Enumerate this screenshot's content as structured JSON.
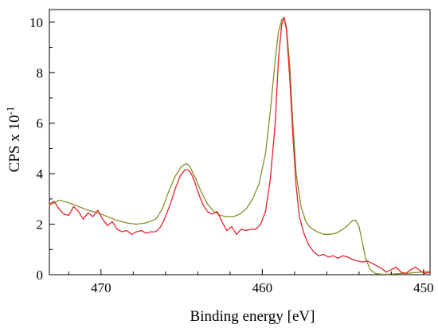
{
  "chart_data": {
    "type": "line",
    "title": "",
    "xlabel": "Binding energy [eV]",
    "ylabel": "CPS x 10",
    "ylabel_superscript": "-1",
    "x_reversed": true,
    "xlim": [
      473.2,
      449.6
    ],
    "ylim": [
      0,
      10.5
    ],
    "x_ticks": [
      470,
      460,
      450
    ],
    "x_tick_labels": [
      "470",
      "460",
      "450"
    ],
    "y_ticks": [
      0,
      2,
      4,
      6,
      8,
      10
    ],
    "y_tick_labels": [
      "0",
      "2",
      "4",
      "6",
      "8",
      "10"
    ],
    "grid": false,
    "legend": "none",
    "series": [
      {
        "color": "#8B8B2A",
        "x": [
          473.2,
          472.6,
          472,
          471.4,
          470.8,
          470.2,
          469.6,
          469,
          468.4,
          467.8,
          467.2,
          466.6,
          466.2,
          465.8,
          465.4,
          465,
          464.7,
          464.5,
          464.2,
          463.8,
          463.4,
          463,
          462.6,
          462.2,
          461.8,
          461.4,
          461,
          460.6,
          460.2,
          459.8,
          459.5,
          459.2,
          459,
          458.8,
          458.65,
          458.5,
          458.3,
          458.1,
          457.9,
          457.6,
          457.3,
          457,
          456.6,
          456.2,
          455.8,
          455.4,
          455,
          454.7,
          454.4,
          454.2,
          454,
          453.8,
          453.6,
          453.3,
          453,
          452.6,
          452.2,
          451.8,
          451.4,
          451,
          450.6,
          450.2,
          449.6
        ],
        "y": [
          2.75,
          2.95,
          2.85,
          2.7,
          2.55,
          2.45,
          2.3,
          2.15,
          2.05,
          2.0,
          2.05,
          2.2,
          2.6,
          3.3,
          3.9,
          4.3,
          4.4,
          4.3,
          3.9,
          3.3,
          2.8,
          2.5,
          2.35,
          2.3,
          2.3,
          2.4,
          2.6,
          3.0,
          3.6,
          4.8,
          6.5,
          8.5,
          9.6,
          10.1,
          10.15,
          9.8,
          8.3,
          6.0,
          4.0,
          2.7,
          2.1,
          1.85,
          1.7,
          1.6,
          1.6,
          1.65,
          1.8,
          1.95,
          2.15,
          2.15,
          1.9,
          1.3,
          0.65,
          0.2,
          0.05,
          0.02,
          0.02,
          0.03,
          0.05,
          0.05,
          0.08,
          0.1,
          0.12
        ]
      },
      {
        "color": "#E8202A",
        "x": [
          473.2,
          472.9,
          472.6,
          472.3,
          472,
          471.7,
          471.4,
          471.1,
          470.8,
          470.5,
          470.2,
          469.9,
          469.6,
          469.3,
          469,
          468.7,
          468.4,
          468.1,
          467.8,
          467.5,
          467.2,
          466.9,
          466.6,
          466.3,
          466,
          465.7,
          465.4,
          465.1,
          464.8,
          464.6,
          464.4,
          464.2,
          464,
          463.7,
          463.4,
          463.1,
          462.8,
          462.5,
          462.2,
          461.9,
          461.6,
          461.3,
          461,
          460.7,
          460.4,
          460.1,
          459.8,
          459.5,
          459.2,
          459,
          458.8,
          458.65,
          458.5,
          458.3,
          458.1,
          457.9,
          457.7,
          457.4,
          457.1,
          456.8,
          456.5,
          456.2,
          455.9,
          455.6,
          455.3,
          455,
          454.7,
          454.4,
          454.1,
          453.8,
          453.5,
          453.2,
          452.9,
          452.6,
          452.3,
          452,
          451.7,
          451.4,
          451.1,
          450.8,
          450.5,
          450.2,
          449.9,
          449.6
        ],
        "y": [
          2.8,
          2.9,
          2.6,
          2.4,
          2.35,
          2.7,
          2.5,
          2.2,
          2.45,
          2.3,
          2.55,
          2.2,
          1.95,
          2.1,
          1.8,
          1.7,
          1.75,
          1.6,
          1.7,
          1.75,
          1.65,
          1.7,
          1.7,
          1.9,
          2.3,
          2.8,
          3.4,
          3.9,
          4.15,
          4.15,
          4.0,
          3.7,
          3.3,
          2.8,
          2.5,
          2.4,
          2.5,
          2.1,
          1.75,
          1.9,
          1.6,
          1.8,
          1.75,
          1.8,
          1.8,
          2.0,
          2.5,
          3.8,
          6.0,
          8.5,
          9.9,
          10.2,
          9.7,
          7.8,
          5.5,
          3.5,
          2.3,
          1.6,
          1.15,
          0.9,
          0.75,
          0.8,
          0.7,
          0.75,
          0.65,
          0.75,
          0.7,
          0.6,
          0.55,
          0.5,
          0.55,
          0.45,
          0.35,
          0.25,
          0.1,
          0.2,
          0.3,
          0.1,
          0.05,
          0.2,
          0.3,
          0.15,
          0.05,
          0.1
        ]
      }
    ]
  }
}
